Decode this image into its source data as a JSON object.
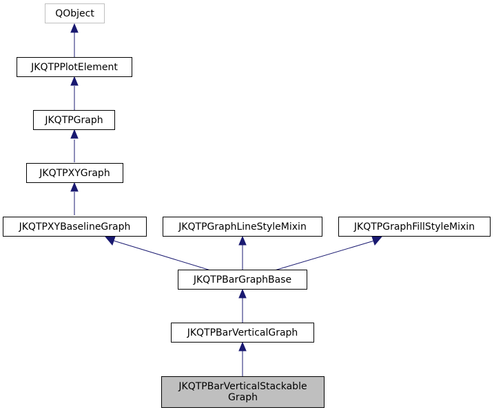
{
  "diagram": {
    "type": "inheritance-graph",
    "colors": {
      "edge": "#191970",
      "node_border": "#000000",
      "external_border": "#bfbfbf",
      "current_fill": "#bfbfbf"
    },
    "nodes": {
      "qobject": {
        "label": "QObject"
      },
      "plotelement": {
        "label": "JKQTPPlotElement"
      },
      "graph": {
        "label": "JKQTPGraph"
      },
      "xygraph": {
        "label": "JKQTPXYGraph"
      },
      "xybaseline": {
        "label": "JKQTPXYBaselineGraph"
      },
      "linestyle": {
        "label": "JKQTPGraphLineStyleMixin"
      },
      "fillstyle": {
        "label": "JKQTPGraphFillStyleMixin"
      },
      "bargraphbase": {
        "label": "JKQTPBarGraphBase"
      },
      "barvertical": {
        "label": "JKQTPBarVerticalGraph"
      },
      "stackable": {
        "label_line1": "JKQTPBarVerticalStackable",
        "label_line2": "Graph"
      }
    },
    "edges": [
      {
        "from": "plotelement",
        "to": "qobject"
      },
      {
        "from": "graph",
        "to": "plotelement"
      },
      {
        "from": "xygraph",
        "to": "graph"
      },
      {
        "from": "xybaseline",
        "to": "xygraph"
      },
      {
        "from": "bargraphbase",
        "to": "xybaseline"
      },
      {
        "from": "bargraphbase",
        "to": "linestyle"
      },
      {
        "from": "bargraphbase",
        "to": "fillstyle"
      },
      {
        "from": "barvertical",
        "to": "bargraphbase"
      },
      {
        "from": "stackable",
        "to": "barvertical"
      }
    ]
  }
}
